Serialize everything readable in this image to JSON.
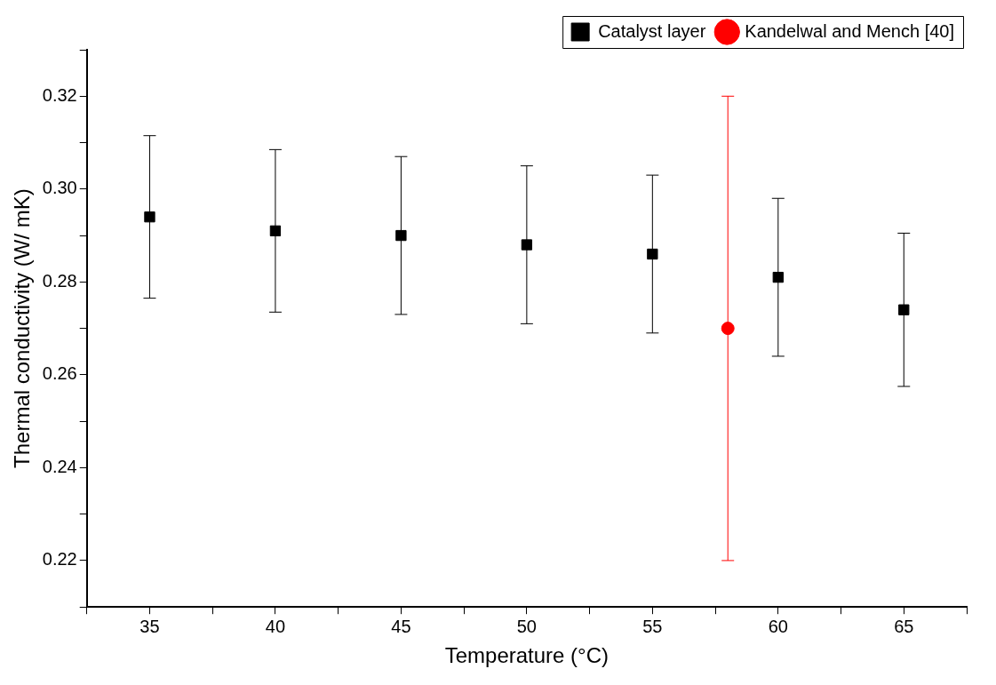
{
  "chart_data": {
    "type": "scatter",
    "xlabel": "Temperature (°C)",
    "ylabel": "Thermal conductivity (W/ mK)",
    "xlim": [
      32.5,
      67.5
    ],
    "xticks": [
      {
        "value": 32.5,
        "label": null
      },
      35,
      {
        "value": 37.5,
        "label": null
      },
      40,
      {
        "value": 42.5,
        "label": null
      },
      45,
      {
        "value": 47.5,
        "label": null
      },
      50,
      {
        "value": 52.5,
        "label": null
      },
      55,
      {
        "value": 57.5,
        "label": null
      },
      60,
      {
        "value": 62.5,
        "label": null
      },
      65,
      {
        "value": 67.5,
        "label": null
      }
    ],
    "ylim": [
      0.21,
      0.33
    ],
    "yticks": [
      {
        "value": 0.21,
        "label": null
      },
      0.22,
      {
        "value": 0.23,
        "label": null
      },
      0.24,
      {
        "value": 0.25,
        "label": null
      },
      0.26,
      {
        "value": 0.27,
        "label": null
      },
      0.28,
      {
        "value": 0.29,
        "label": null
      },
      {
        "value": 0.3,
        "label": "0.30"
      },
      {
        "value": 0.31,
        "label": null
      },
      0.32,
      {
        "value": 0.33,
        "label": null
      }
    ],
    "grid": false,
    "legend": "top right",
    "series": [
      {
        "name": "Catalyst layer",
        "color": "#000000",
        "marker": "square",
        "x": [
          35,
          40,
          45,
          50,
          55,
          60,
          65
        ],
        "values": [
          0.294,
          0.291,
          0.29,
          0.288,
          0.286,
          0.281,
          0.274
        ],
        "errors": [
          0.0175,
          0.0175,
          0.017,
          0.017,
          0.017,
          0.017,
          0.0165
        ]
      },
      {
        "name": "Kandelwal and Mench [40]",
        "color": "#ff0000",
        "marker": "circle",
        "x": [
          58
        ],
        "values": [
          0.27
        ],
        "errors": [
          0.05
        ]
      }
    ]
  }
}
